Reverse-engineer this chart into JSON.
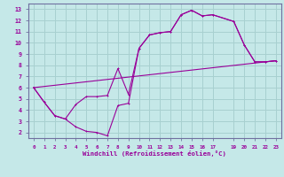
{
  "xlabel": "Windchill (Refroidissement éolien,°C)",
  "bg_color": "#c5e8e8",
  "grid_color": "#a8d0d0",
  "line_color": "#990099",
  "spine_color": "#7070a0",
  "xlim": [
    -0.5,
    23.5
  ],
  "ylim": [
    1.5,
    13.5
  ],
  "xticks": [
    0,
    1,
    2,
    3,
    4,
    5,
    6,
    7,
    8,
    9,
    10,
    11,
    12,
    13,
    14,
    15,
    16,
    17,
    19,
    20,
    21,
    22,
    23
  ],
  "yticks": [
    2,
    3,
    4,
    5,
    6,
    7,
    8,
    9,
    10,
    11,
    12,
    13
  ],
  "line1_x": [
    0,
    1,
    2,
    3,
    4,
    5,
    6,
    7,
    8,
    9,
    10,
    11,
    12,
    13,
    14,
    15,
    16,
    17,
    19,
    20,
    21,
    22,
    23
  ],
  "line1_y": [
    6.0,
    4.7,
    3.5,
    3.2,
    2.5,
    2.1,
    2.0,
    1.7,
    4.4,
    4.6,
    9.5,
    10.7,
    10.9,
    11.0,
    12.5,
    12.9,
    12.4,
    12.5,
    11.9,
    9.8,
    8.3,
    8.3,
    8.4
  ],
  "line2_x": [
    0,
    1,
    2,
    3,
    4,
    5,
    6,
    7,
    8,
    9,
    10,
    11,
    12,
    13,
    14,
    15,
    16,
    17,
    19,
    20,
    21,
    22,
    23
  ],
  "line2_y": [
    6.0,
    4.7,
    3.5,
    3.2,
    4.5,
    5.2,
    5.2,
    5.3,
    7.7,
    5.4,
    9.5,
    10.7,
    10.9,
    11.0,
    12.5,
    12.9,
    12.4,
    12.5,
    11.9,
    9.8,
    8.3,
    8.3,
    8.4
  ],
  "line3_x": [
    0,
    23
  ],
  "line3_y": [
    6.0,
    8.4
  ]
}
